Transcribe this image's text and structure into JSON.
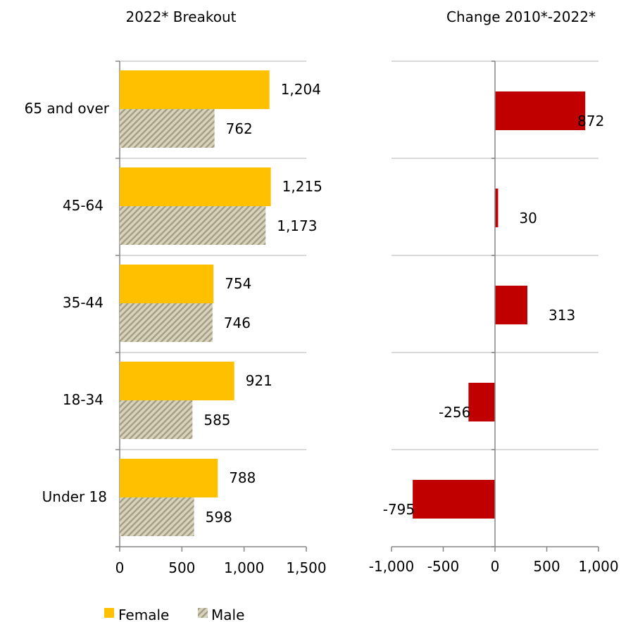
{
  "chart_data": [
    {
      "type": "bar",
      "orientation": "horizontal",
      "title": "2022* Breakout",
      "categories": [
        "65 and over",
        "45-64",
        "35-44",
        "18-34",
        "Under 18"
      ],
      "series": [
        {
          "name": "Female",
          "values": [
            1204,
            1215,
            754,
            921,
            788
          ],
          "labels": [
            "1,204",
            "1,215",
            "754",
            "921",
            "788"
          ],
          "color": "#FFC000"
        },
        {
          "name": "Male",
          "values": [
            762,
            1173,
            746,
            585,
            598
          ],
          "labels": [
            "762",
            "1,173",
            "746",
            "585",
            "598"
          ],
          "color": "#C4BD97",
          "pattern": "diagonal-hatch"
        }
      ],
      "xlim": [
        0,
        1500
      ],
      "xticks": [
        0,
        500,
        1000,
        1500
      ],
      "xtick_labels": [
        "0",
        "500",
        "1,000",
        "1,500"
      ],
      "grid": "horizontal"
    },
    {
      "type": "bar",
      "orientation": "horizontal",
      "title": "Change 2010*-2022*",
      "categories": [
        "65 and over",
        "45-64",
        "35-44",
        "18-34",
        "Under 18"
      ],
      "series": [
        {
          "values": [
            872,
            30,
            313,
            -256,
            -795
          ],
          "labels": [
            "872",
            "30",
            "313",
            "-256",
            "-795"
          ],
          "color": "#C00000"
        }
      ],
      "xlim": [
        -1000,
        1000
      ],
      "xticks": [
        -1000,
        -500,
        0,
        500,
        1000
      ],
      "xtick_labels": [
        "-1,000",
        "-500",
        "0",
        "500",
        "1,000"
      ],
      "grid": "horizontal"
    }
  ],
  "legend": {
    "placement": "bottom-left",
    "items": [
      {
        "label": "Female",
        "color": "#FFC000"
      },
      {
        "label": "Male",
        "color": "#C4BD97",
        "pattern": "diagonal-hatch"
      }
    ]
  }
}
